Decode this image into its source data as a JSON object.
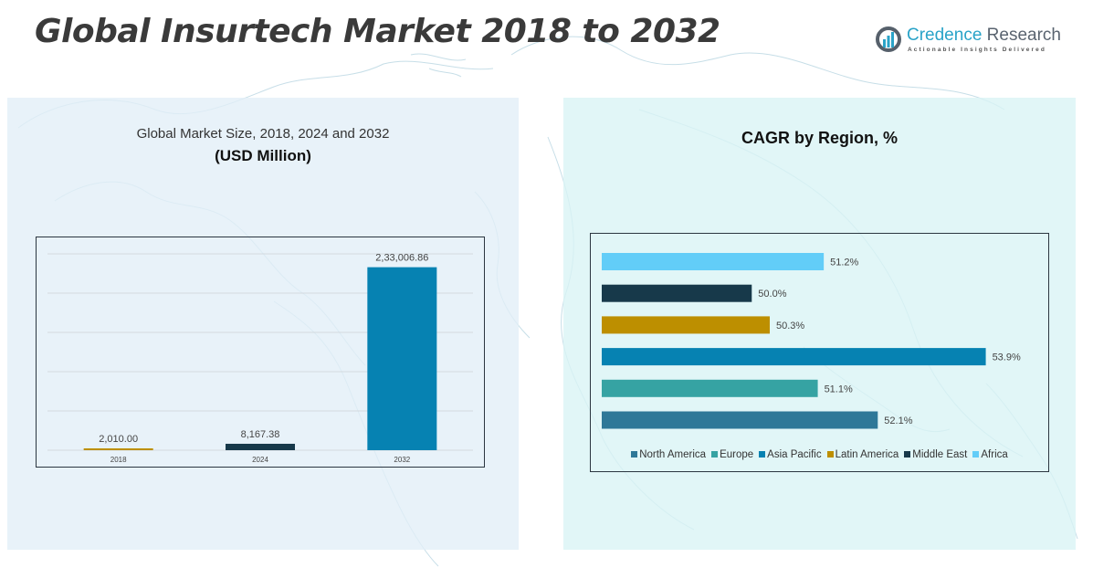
{
  "header": {
    "title": "Global Insurtech Market 2018 to 2032"
  },
  "logo": {
    "name_part1": "Credence",
    "name_part2": " Research",
    "tagline": "Actionable Insights Delivered",
    "icon": "bar-chart-circle-icon"
  },
  "left_panel": {
    "subtitle": "Global Market Size, 2018, 2024 and 2032",
    "unit": "(USD Million)"
  },
  "right_panel": {
    "title": "CAGR by Region, %"
  },
  "colors": {
    "title": "#3a3a3a",
    "brand_teal": "#2aa3c8",
    "north_america": "#2e7898",
    "europe": "#36a3a3",
    "asia_pacific": "#0682b2",
    "latin_america": "#bd8f00",
    "middle_east": "#17394a",
    "africa": "#62cdf8"
  },
  "chart_data": [
    {
      "type": "bar",
      "title": "Global Market Size, 2018, 2024 and 2032 (USD Million)",
      "xlabel": "",
      "ylabel": "",
      "categories": [
        "2018",
        "2024",
        "2032"
      ],
      "values": [
        2010.0,
        8167.38,
        233006.86
      ],
      "value_labels": [
        "2,010.00",
        "8,167.38",
        "2,33,006.86"
      ],
      "bar_colors": [
        "#bd8f00",
        "#17394a",
        "#0682b2"
      ],
      "ylim": [
        0,
        250000
      ],
      "gridlines": [
        0,
        50000,
        100000,
        150000,
        200000,
        250000
      ],
      "grid": true,
      "y_tick_labels_visible": false,
      "legend": "none"
    },
    {
      "type": "bar",
      "orientation": "horizontal",
      "title": "CAGR by Region, %",
      "categories": [
        "Africa",
        "Middle East",
        "Latin America",
        "Asia Pacific",
        "Europe",
        "North America"
      ],
      "values": [
        51.2,
        50.0,
        50.3,
        53.9,
        51.1,
        52.1
      ],
      "value_labels": [
        "51.2%",
        "50.0%",
        "50.3%",
        "53.9%",
        "51.1%",
        "52.1%"
      ],
      "bar_colors": [
        "#62cdf8",
        "#17394a",
        "#bd8f00",
        "#0682b2",
        "#36a3a3",
        "#2e7898"
      ],
      "xlim": [
        47.5,
        54.5
      ],
      "grid": false,
      "legend": "bottom",
      "legend_entries": [
        {
          "label": "North America",
          "color": "#2e7898"
        },
        {
          "label": "Europe",
          "color": "#36a3a3"
        },
        {
          "label": "Asia Pacific",
          "color": "#0682b2"
        },
        {
          "label": "Latin America",
          "color": "#bd8f00"
        },
        {
          "label": "Middle East",
          "color": "#17394a"
        },
        {
          "label": "Africa",
          "color": "#62cdf8"
        }
      ]
    }
  ]
}
